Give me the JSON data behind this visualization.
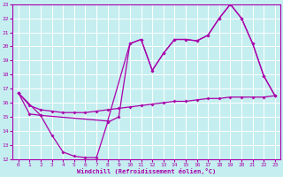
{
  "xlabel": "Windchill (Refroidissement éolien,°C)",
  "xlim": [
    -0.5,
    23.5
  ],
  "ylim": [
    12,
    23
  ],
  "xticks": [
    0,
    1,
    2,
    3,
    4,
    5,
    6,
    7,
    8,
    9,
    10,
    11,
    12,
    13,
    14,
    15,
    16,
    17,
    18,
    19,
    20,
    21,
    22,
    23
  ],
  "yticks": [
    12,
    13,
    14,
    15,
    16,
    17,
    18,
    19,
    20,
    21,
    22,
    23
  ],
  "bg_color": "#c5eef0",
  "line_color": "#aa00aa",
  "grid_color": "#ffffff",
  "line1_x": [
    0,
    1,
    2,
    3,
    4,
    5,
    6,
    7,
    8,
    9,
    10,
    11,
    12,
    13,
    14,
    15,
    16,
    17,
    18,
    19,
    20,
    21,
    22,
    23
  ],
  "line1_y": [
    16.7,
    15.2,
    15.1,
    13.7,
    12.5,
    12.2,
    12.1,
    12.1,
    14.6,
    15.0,
    20.2,
    20.5,
    18.3,
    19.5,
    20.5,
    20.5,
    20.4,
    20.8,
    22.0,
    23.0,
    22.0,
    20.2,
    17.9,
    16.5
  ],
  "line2_x": [
    0,
    2,
    8,
    10,
    11,
    12,
    13,
    14,
    15,
    16,
    17,
    18,
    19,
    20,
    21,
    22,
    23
  ],
  "line2_y": [
    16.7,
    15.1,
    14.7,
    20.2,
    20.5,
    18.3,
    19.5,
    20.5,
    20.5,
    20.4,
    20.8,
    22.0,
    23.0,
    22.0,
    20.2,
    17.9,
    16.5
  ],
  "line3_x": [
    0,
    1,
    2,
    3,
    4,
    5,
    6,
    7,
    8,
    9,
    10,
    11,
    12,
    13,
    14,
    15,
    16,
    17,
    18,
    19,
    20,
    21,
    22,
    23
  ],
  "line3_y": [
    16.7,
    15.8,
    15.5,
    15.4,
    15.3,
    15.3,
    15.3,
    15.4,
    15.5,
    15.6,
    15.7,
    15.8,
    15.9,
    16.0,
    16.1,
    16.1,
    16.2,
    16.3,
    16.3,
    16.4,
    16.4,
    16.4,
    16.4,
    16.5
  ]
}
